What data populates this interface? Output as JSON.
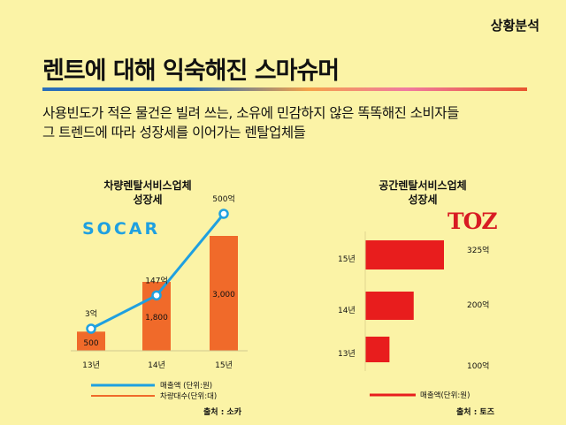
{
  "header": {
    "corner_label": "상황분석",
    "headline": "렌트에 대해 익숙해진 스마슈머",
    "subtitle_line1": "사용빈도가 적은 물건은 빌려 쓰는, 소유에 민감하지 않은 똑똑해진 소비자들",
    "subtitle_line2": "그 트렌드에 따라 성장세를 이어가는 렌탈업체들"
  },
  "colors": {
    "background": "#fbf3a6",
    "bar": "#f06a2a",
    "line": "#1fa0e0",
    "toz_bar": "#e81d1d",
    "socar": "#1fa0e0",
    "toz": "#d81b23"
  },
  "chart_data": [
    {
      "type": "bar",
      "title_line1": "차량렌탈서비스업체",
      "title_line2": "성장세",
      "logo": "SOCAR",
      "categories": [
        "13년",
        "14년",
        "15년"
      ],
      "series": [
        {
          "name": "차량대수(단위:대)",
          "type": "bar",
          "values": [
            500,
            1800,
            3000
          ],
          "labels": [
            "500",
            "1,800",
            "3,000"
          ]
        },
        {
          "name": "매출액    (단위:원)",
          "type": "line",
          "values": [
            3,
            147,
            500
          ],
          "labels": [
            "3억",
            "147억",
            "500억"
          ]
        }
      ],
      "legend_position": "bottom",
      "source": "출처 : 소카"
    },
    {
      "type": "bar",
      "orientation": "horizontal",
      "title_line1": "공간렌탈서비스업체",
      "title_line2": "성장세",
      "logo": "TOZ",
      "categories": [
        "15년",
        "14년",
        "13년"
      ],
      "series": [
        {
          "name": "매출액(단위:원)",
          "values": [
            325,
            200,
            100
          ],
          "labels": [
            "325억",
            "200억",
            "100억"
          ]
        }
      ],
      "legend_position": "bottom",
      "source": "출처 : 토즈"
    }
  ]
}
